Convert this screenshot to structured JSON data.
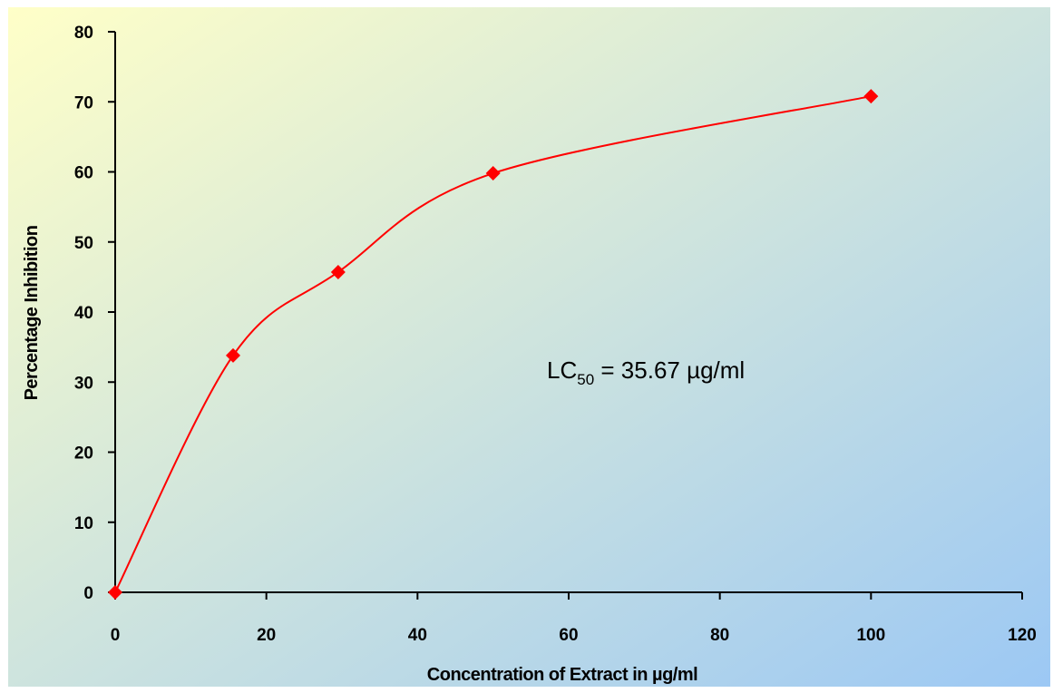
{
  "chart_data": {
    "type": "line",
    "xlabel": "Concentration of Extract in µg/ml",
    "ylabel": "Percentage Inhibition",
    "xlim": [
      0,
      120
    ],
    "ylim": [
      0,
      80
    ],
    "xticks": [
      0,
      20,
      40,
      60,
      80,
      100,
      120
    ],
    "yticks": [
      0,
      10,
      20,
      30,
      40,
      50,
      60,
      70,
      80
    ],
    "x": [
      0,
      15.6,
      29.5,
      50,
      100
    ],
    "series": [
      {
        "values": [
          0,
          33.8,
          45.7,
          59.8,
          70.8
        ]
      }
    ],
    "smooth": true,
    "marker": "diamond",
    "grid": false,
    "colors": {
      "series": "#ff0000",
      "axis": "#000000",
      "bg_start": "#ffffc8",
      "bg_end": "#9cc8f4"
    },
    "annotation": {
      "main": "LC",
      "sub": "50",
      "rest": " = 35.67 µg/ml"
    }
  }
}
